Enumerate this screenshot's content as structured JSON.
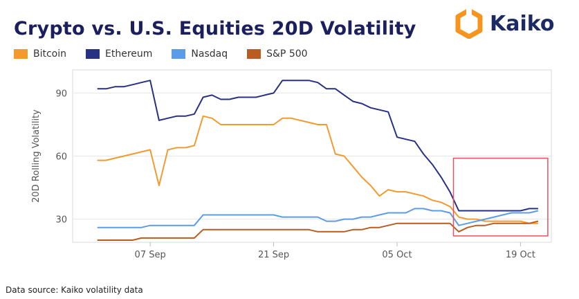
{
  "title": "Crypto vs. U.S. Equities 20D Volatility",
  "brand": {
    "name": "Kaiko",
    "color": "#f7941d",
    "text_color": "#1c2a63"
  },
  "source": "Data source: Kaiko volatility data",
  "chart_data": {
    "type": "line",
    "title": "Crypto vs. U.S. Equities 20D Volatility",
    "xlabel": "",
    "ylabel": "20D Rolling Volatility",
    "x_ticks": [
      {
        "day": 7,
        "label": "07 Sep"
      },
      {
        "day": 21,
        "label": "21 Sep"
      },
      {
        "day": 35,
        "label": "05 Oct"
      },
      {
        "day": 49,
        "label": "19 Oct"
      }
    ],
    "y_ticks": [
      30,
      60,
      90
    ],
    "xlim": [
      -1.8,
      52.5
    ],
    "ylim": [
      19,
      101
    ],
    "grid": true,
    "legend_position": "top-left",
    "highlight_box": {
      "x": [
        41.4,
        52.1
      ],
      "y": [
        22,
        59
      ],
      "color": "#e8505b"
    },
    "series": [
      {
        "name": "Bitcoin",
        "color": "#f39a2f",
        "x": [
          1,
          2,
          3,
          4,
          5,
          6,
          7,
          8,
          9,
          10,
          11,
          12,
          13,
          14,
          15,
          16,
          17,
          18,
          19,
          20,
          21,
          22,
          23,
          24,
          25,
          26,
          27,
          28,
          29,
          30,
          31,
          32,
          33,
          34,
          35,
          36,
          37,
          38,
          39,
          40,
          41,
          42,
          43,
          44,
          45,
          46,
          47,
          48,
          49,
          50,
          51
        ],
        "y": [
          58,
          58,
          59,
          60,
          61,
          62,
          63,
          46,
          63,
          64,
          64,
          65,
          79,
          78,
          75,
          75,
          75,
          75,
          75,
          75,
          75,
          78,
          78,
          77,
          76,
          75,
          75,
          61,
          60,
          55,
          50,
          46,
          41,
          44,
          43,
          43,
          42,
          41,
          39,
          38,
          36,
          31,
          30,
          30,
          29,
          29,
          29,
          29,
          29,
          28,
          28
        ]
      },
      {
        "name": "Ethereum",
        "color": "#273083",
        "x": [
          1,
          2,
          3,
          4,
          5,
          6,
          7,
          8,
          9,
          10,
          11,
          12,
          13,
          14,
          15,
          16,
          17,
          18,
          19,
          20,
          21,
          22,
          23,
          24,
          25,
          26,
          27,
          28,
          29,
          30,
          31,
          32,
          33,
          34,
          35,
          36,
          37,
          38,
          39,
          40,
          41,
          42,
          43,
          44,
          45,
          46,
          47,
          48,
          49,
          50,
          51
        ],
        "y": [
          92,
          92,
          93,
          93,
          94,
          95,
          96,
          77,
          78,
          79,
          79,
          80,
          88,
          89,
          87,
          87,
          88,
          88,
          88,
          89,
          90,
          96,
          96,
          96,
          96,
          95,
          92,
          92,
          89,
          86,
          85,
          83,
          82,
          81,
          69,
          68,
          67,
          61,
          56,
          50,
          43,
          34,
          34,
          34,
          34,
          34,
          34,
          34,
          34,
          35,
          35
        ]
      },
      {
        "name": "Nasdaq",
        "color": "#5c9ce6",
        "x": [
          1,
          2,
          3,
          4,
          5,
          6,
          7,
          8,
          9,
          10,
          11,
          12,
          13,
          14,
          15,
          16,
          17,
          18,
          19,
          20,
          21,
          22,
          23,
          24,
          25,
          26,
          27,
          28,
          29,
          30,
          31,
          32,
          33,
          34,
          35,
          36,
          37,
          38,
          39,
          40,
          41,
          42,
          43,
          44,
          45,
          46,
          47,
          48,
          49,
          50,
          51
        ],
        "y": [
          26,
          26,
          26,
          26,
          26,
          26,
          27,
          27,
          27,
          27,
          27,
          27,
          32,
          32,
          32,
          32,
          32,
          32,
          32,
          32,
          32,
          31,
          31,
          31,
          31,
          31,
          29,
          29,
          30,
          30,
          31,
          31,
          32,
          33,
          33,
          33,
          35,
          35,
          34,
          34,
          33,
          27,
          28,
          29,
          30,
          31,
          32,
          33,
          33,
          33,
          34
        ]
      },
      {
        "name": "S&P 500",
        "color": "#b85c21",
        "x": [
          1,
          2,
          3,
          4,
          5,
          6,
          7,
          8,
          9,
          10,
          11,
          12,
          13,
          14,
          15,
          16,
          17,
          18,
          19,
          20,
          21,
          22,
          23,
          24,
          25,
          26,
          27,
          28,
          29,
          30,
          31,
          32,
          33,
          34,
          35,
          36,
          37,
          38,
          39,
          40,
          41,
          42,
          43,
          44,
          45,
          46,
          47,
          48,
          49,
          50,
          51
        ],
        "y": [
          20,
          20,
          20,
          20,
          20,
          21,
          21,
          21,
          21,
          21,
          21,
          21,
          25,
          25,
          25,
          25,
          25,
          25,
          25,
          25,
          25,
          25,
          25,
          25,
          25,
          24,
          24,
          24,
          24,
          25,
          25,
          26,
          26,
          27,
          28,
          28,
          28,
          28,
          28,
          28,
          28,
          24,
          26,
          27,
          27,
          28,
          28,
          28,
          28,
          28,
          29
        ]
      }
    ]
  }
}
